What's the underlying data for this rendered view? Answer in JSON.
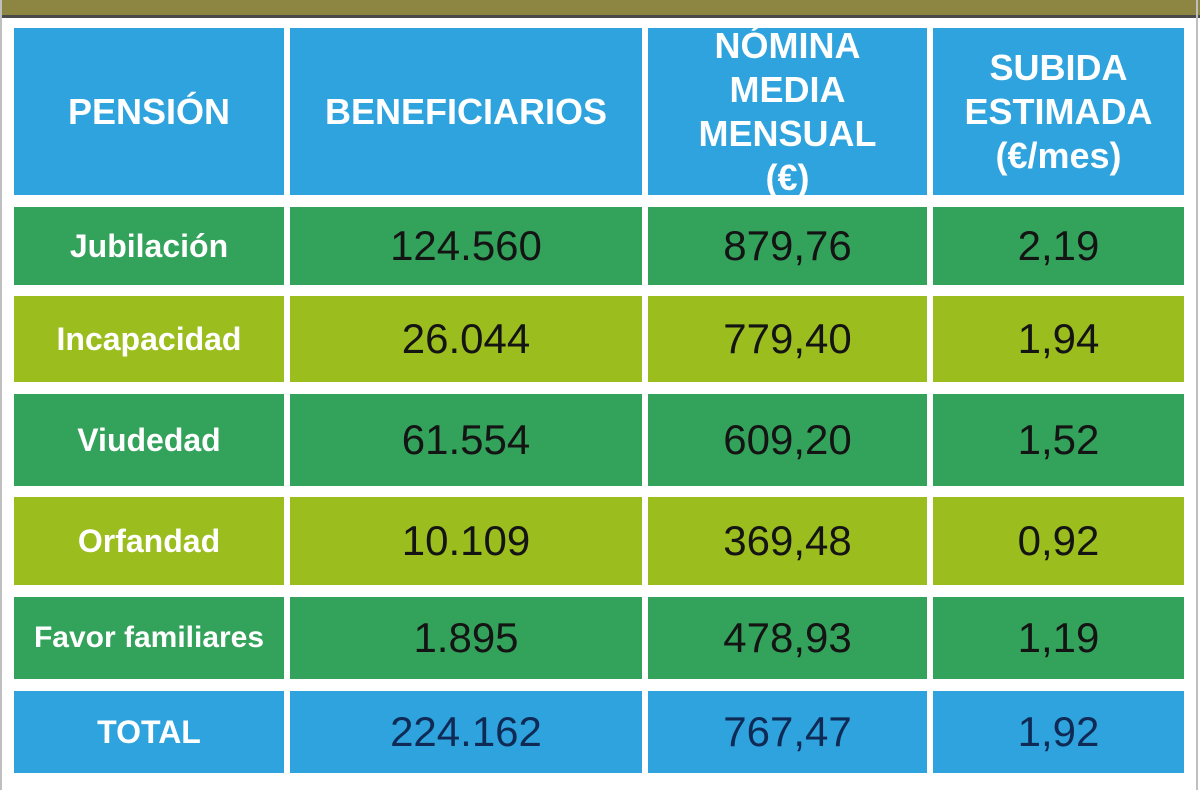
{
  "colors": {
    "header": "#2ea3dd",
    "row_green": "#33a25b",
    "row_lime": "#9bbd1d",
    "total": "#2ea3dd",
    "top_bar": "#8c8642"
  },
  "headers": {
    "pension": "PENSIÓN",
    "beneficiarios": "BENEFICIARIOS",
    "nomina": "NÓMINA MEDIA MENSUAL (€)",
    "subida": "SUBIDA ESTIMADA (€/mes)"
  },
  "rows": [
    {
      "pension": "Jubilación",
      "beneficiarios": "124.560",
      "nomina": "879,76",
      "subida": "2,19"
    },
    {
      "pension": "Incapacidad",
      "beneficiarios": "26.044",
      "nomina": "779,40",
      "subida": "1,94"
    },
    {
      "pension": "Viudedad",
      "beneficiarios": "61.554",
      "nomina": "609,20",
      "subida": "1,52"
    },
    {
      "pension": "Orfandad",
      "beneficiarios": "10.109",
      "nomina": "369,48",
      "subida": "0,92"
    },
    {
      "pension": "Favor familiares",
      "beneficiarios": "1.895",
      "nomina": "478,93",
      "subida": "1,19"
    }
  ],
  "total": {
    "pension": "TOTAL",
    "beneficiarios": "224.162",
    "nomina": "767,47",
    "subida": "1,92"
  }
}
